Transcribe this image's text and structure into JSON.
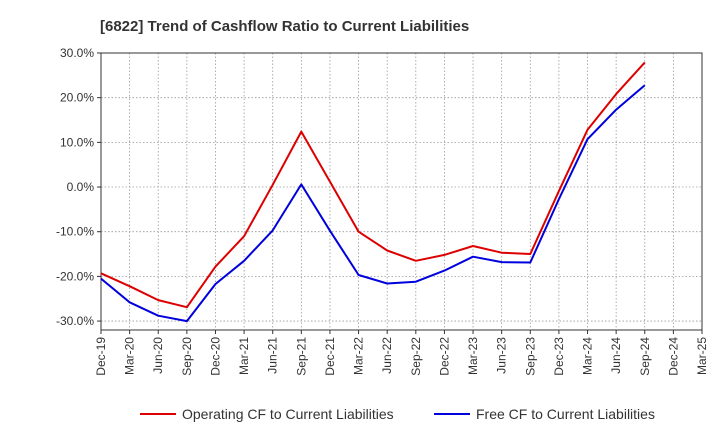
{
  "chart_data": {
    "type": "line",
    "title": "[6822]  Trend of Cashflow Ratio to Current Liabilities",
    "xlabel": "",
    "ylabel": "",
    "ylim": [
      -32,
      30
    ],
    "yticks": [
      30,
      20,
      10,
      0,
      -10,
      -20,
      -30
    ],
    "ytick_labels": [
      "30.0%",
      "20.0%",
      "10.0%",
      "0.0%",
      "-10.0%",
      "-20.0%",
      "-30.0%"
    ],
    "x": [
      "Dec-19",
      "Mar-20",
      "Jun-20",
      "Sep-20",
      "Dec-20",
      "Mar-21",
      "Jun-21",
      "Sep-21",
      "Dec-21",
      "Mar-22",
      "Jun-22",
      "Sep-22",
      "Dec-22",
      "Mar-23",
      "Jun-23",
      "Sep-23",
      "Dec-23",
      "Mar-24",
      "Jun-24",
      "Sep-24",
      "Dec-24",
      "Mar-25"
    ],
    "xtick_labels": [
      "Dec-19",
      "Mar-20",
      "Jun-20",
      "Sep-20",
      "Dec-20",
      "Mar-21",
      "Jun-21",
      "Sep-21",
      "Dec-21",
      "Mar-22",
      "Jun-22",
      "Sep-22",
      "Dec-22",
      "Mar-23",
      "Jun-23",
      "Sep-23",
      "Dec-23",
      "Mar-24",
      "Jun-24",
      "Sep-24",
      "Dec-24",
      "Mar-25"
    ],
    "grid": true,
    "legend_position": "bottom",
    "series": [
      {
        "name": "Operating CF to Current Liabilities",
        "color": "#dd0000",
        "values": [
          -19.3,
          -22.2,
          -25.3,
          -26.9,
          -17.8,
          -11.0,
          0.5,
          12.4,
          1.2,
          -10.0,
          -14.2,
          -16.5,
          -15.2,
          -13.2,
          -14.7,
          -15.0,
          -0.9,
          12.8,
          20.8,
          27.9,
          null,
          null
        ]
      },
      {
        "name": "Free CF to Current Liabilities",
        "color": "#0000dd",
        "values": [
          -20.5,
          -25.8,
          -28.8,
          -30.0,
          -21.7,
          -16.5,
          -9.7,
          0.6,
          -9.8,
          -19.7,
          -21.6,
          -21.2,
          -18.7,
          -15.6,
          -16.8,
          -16.9,
          -2.7,
          10.7,
          17.3,
          22.8,
          null,
          null
        ]
      }
    ]
  }
}
